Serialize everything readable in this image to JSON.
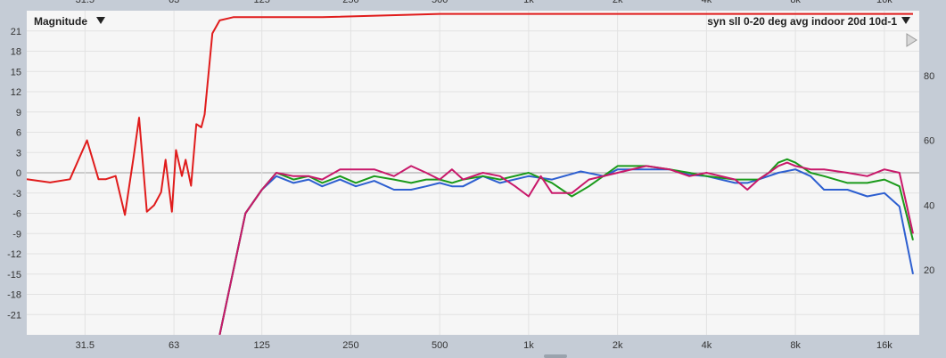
{
  "chart_data": {
    "type": "line",
    "title": "Magnitude",
    "legend_label": "syn sll 0-20 deg avg indoor 20d 10d-1",
    "xscale": "log",
    "xlim": [
      20,
      21000
    ],
    "ylim": [
      -24,
      24
    ],
    "x_tick_labels": [
      "31.5",
      "63",
      "125",
      "250",
      "500",
      "1k",
      "2k",
      "4k",
      "8k",
      "16k"
    ],
    "x_tick_values": [
      31.5,
      63,
      125,
      250,
      500,
      1000,
      2000,
      4000,
      8000,
      16000
    ],
    "y_tick_labels": [
      "21",
      "18",
      "15",
      "12",
      "9",
      "6",
      "3",
      "0",
      "-3",
      "-6",
      "-9",
      "-12",
      "-15",
      "-18",
      "-21"
    ],
    "y_tick_values": [
      21,
      18,
      15,
      12,
      9,
      6,
      3,
      0,
      -3,
      -6,
      -9,
      -12,
      -15,
      -18,
      -21
    ],
    "right_axis_labels": [
      "80",
      "60",
      "40",
      "20"
    ],
    "right_axis_values": [
      80,
      60,
      40,
      20
    ],
    "right_axis_range": [
      0,
      100
    ],
    "grid": true,
    "series": [
      {
        "color": "#e01c1c",
        "axis": "right",
        "x": [
          20,
          24,
          28,
          32,
          35,
          37,
          40,
          43,
          46,
          48,
          51,
          54,
          57,
          59,
          62,
          64,
          67,
          69,
          72,
          75,
          78,
          80,
          85,
          90,
          100,
          120,
          200,
          500,
          1000,
          2000,
          4000,
          8000,
          16000,
          20000
        ],
        "y": [
          48,
          47,
          48,
          60,
          48,
          48,
          49,
          37,
          55,
          67,
          38,
          40,
          44,
          54,
          38,
          57,
          49,
          54,
          46,
          65,
          64,
          68,
          93,
          97,
          98,
          98,
          98,
          99,
          99,
          99,
          99,
          99,
          99,
          99
        ]
      },
      {
        "color": "#2d5fd0",
        "x": [
          90,
          110,
          125,
          140,
          160,
          180,
          200,
          230,
          260,
          300,
          350,
          400,
          450,
          500,
          550,
          600,
          700,
          800,
          1000,
          1200,
          1500,
          1800,
          2000,
          2500,
          3000,
          3500,
          4000,
          5000,
          5500,
          6000,
          7000,
          8000,
          9000,
          10000,
          12000,
          14000,
          16000,
          18000,
          20000
        ],
        "y": [
          -24,
          -6,
          -2.5,
          -0.5,
          -1.5,
          -1.0,
          -2.0,
          -1.0,
          -2.0,
          -1.2,
          -2.5,
          -2.5,
          -2.0,
          -1.5,
          -2.0,
          -2.0,
          -0.5,
          -1.5,
          -0.5,
          -1.0,
          0.2,
          -0.5,
          0.5,
          0.5,
          0.5,
          -0.3,
          -0.5,
          -1.5,
          -1.5,
          -1.0,
          0.0,
          0.5,
          -0.5,
          -2.5,
          -2.5,
          -3.5,
          -3.0,
          -5.0,
          -15
        ]
      },
      {
        "color": "#1a9a1a",
        "x": [
          90,
          110,
          125,
          140,
          160,
          180,
          200,
          230,
          260,
          300,
          350,
          400,
          450,
          500,
          550,
          600,
          700,
          800,
          1000,
          1200,
          1400,
          1600,
          2000,
          2500,
          3000,
          3500,
          4000,
          5000,
          5500,
          6000,
          6500,
          7000,
          7500,
          8000,
          9000,
          10000,
          12000,
          14000,
          16000,
          18000,
          20000
        ],
        "y": [
          -24,
          -6,
          -2.5,
          0.0,
          -1.0,
          -0.5,
          -1.5,
          -0.5,
          -1.5,
          -0.5,
          -1.0,
          -1.5,
          -1.0,
          -1.0,
          -1.5,
          -1.0,
          -0.5,
          -1.0,
          0.0,
          -1.5,
          -3.5,
          -2.0,
          1.0,
          1.0,
          0.5,
          0.0,
          -0.5,
          -1.0,
          -1.0,
          -1.0,
          0.0,
          1.5,
          2.0,
          1.5,
          0.0,
          -0.5,
          -1.5,
          -1.5,
          -1.0,
          -2.0,
          -10
        ]
      },
      {
        "color": "#c8186a",
        "x": [
          90,
          110,
          125,
          140,
          160,
          180,
          200,
          230,
          260,
          300,
          350,
          400,
          450,
          500,
          550,
          600,
          700,
          800,
          900,
          1000,
          1100,
          1200,
          1400,
          1600,
          2000,
          2500,
          3000,
          3500,
          4000,
          5000,
          5500,
          6000,
          6500,
          7000,
          7500,
          8000,
          9000,
          10000,
          12000,
          14000,
          16000,
          18000,
          20000
        ],
        "y": [
          -24,
          -6,
          -2.5,
          0.0,
          -0.5,
          -0.5,
          -1.0,
          0.5,
          0.5,
          0.5,
          -0.5,
          1.0,
          0.0,
          -1.0,
          0.5,
          -1.0,
          0.0,
          -0.5,
          -2.0,
          -3.5,
          -0.5,
          -3.0,
          -3.0,
          -1.0,
          0.0,
          1.0,
          0.5,
          -0.5,
          0.0,
          -1.0,
          -2.5,
          -1.0,
          0.0,
          1.0,
          1.5,
          1.0,
          0.5,
          0.5,
          0.0,
          -0.5,
          0.5,
          0.0,
          -9
        ]
      }
    ]
  }
}
